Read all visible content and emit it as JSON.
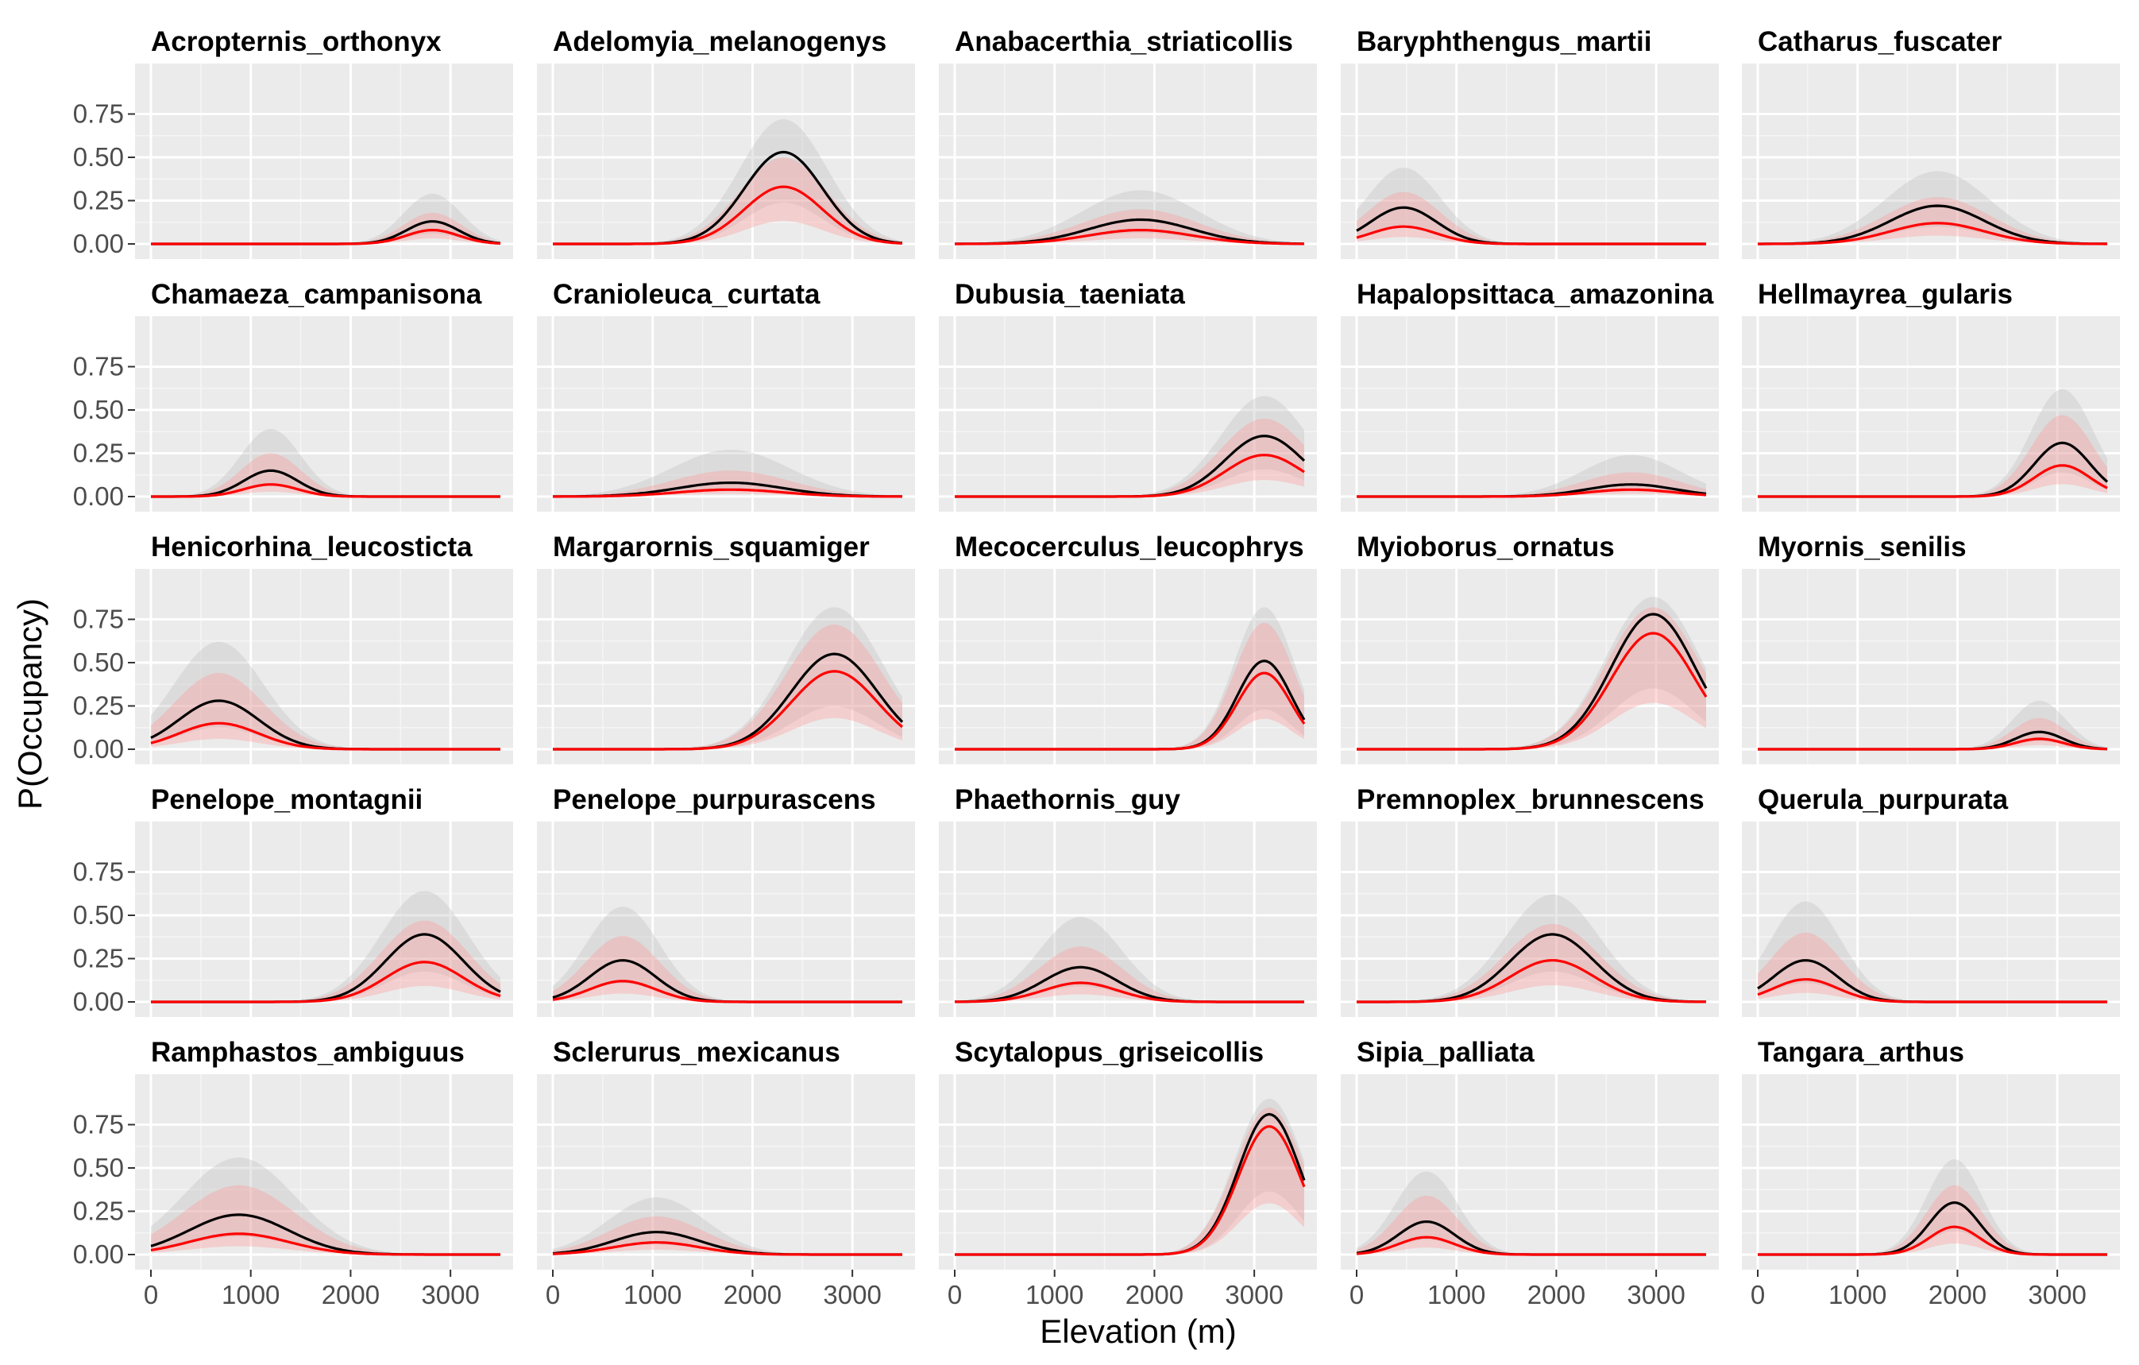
{
  "colors": {
    "panel_bg": "#ebebeb",
    "grid_major": "#ffffff",
    "grid_minor": "#f5f5f5",
    "black_line": "#000000",
    "red_line": "#ff0000",
    "grey_band": "#bdbdbd",
    "red_band": "#ff9999",
    "tick_text": "#4d4d4d"
  },
  "chart_data": {
    "type": "line",
    "xlabel": "Elevation (m)",
    "ylabel": "P(Occupancy)",
    "xlim": [
      0,
      3500
    ],
    "ylim": [
      0,
      0.8
    ],
    "x_ticks": [
      0,
      1000,
      2000,
      3000
    ],
    "x_tick_labels": [
      "0",
      "1000",
      "2000",
      "3000"
    ],
    "y_ticks": [
      0,
      0.25,
      0.5,
      0.75
    ],
    "y_tick_labels": [
      "0.00",
      "0.25",
      "0.50",
      "0.75"
    ],
    "grid": true,
    "layout": "facet grid 5 x 5",
    "series_styles": [
      {
        "color": "#000000",
        "band": "grey"
      },
      {
        "color": "#ff0000",
        "band": "red"
      }
    ],
    "panels": [
      {
        "species": "Acropternis_orthonyx",
        "mu": 2820,
        "sigma": 260,
        "black_peak": 0.13,
        "red_peak": 0.08,
        "black_upper": 0.29,
        "red_upper": 0.18
      },
      {
        "species": "Adelomyia_melanogenys",
        "mu": 2310,
        "sigma": 390,
        "black_peak": 0.53,
        "red_peak": 0.33,
        "black_upper": 0.72,
        "red_upper": 0.5
      },
      {
        "species": "Anabacerthia_striaticollis",
        "mu": 1860,
        "sigma": 520,
        "black_peak": 0.14,
        "red_peak": 0.08,
        "black_upper": 0.31,
        "red_upper": 0.2
      },
      {
        "species": "Baryphthengus_martii",
        "mu": 470,
        "sigma": 330,
        "black_peak": 0.21,
        "red_peak": 0.1,
        "black_upper": 0.44,
        "red_upper": 0.3
      },
      {
        "species": "Catharus_fuscater",
        "mu": 1800,
        "sigma": 470,
        "black_peak": 0.22,
        "red_peak": 0.12,
        "black_upper": 0.42,
        "red_upper": 0.27
      },
      {
        "species": "Chamaeza_campanisona",
        "mu": 1200,
        "sigma": 270,
        "black_peak": 0.15,
        "red_peak": 0.07,
        "black_upper": 0.39,
        "red_upper": 0.25
      },
      {
        "species": "Cranioleuca_curtata",
        "mu": 1780,
        "sigma": 530,
        "black_peak": 0.08,
        "red_peak": 0.04,
        "black_upper": 0.27,
        "red_upper": 0.15
      },
      {
        "species": "Dubusia_taeniata",
        "mu": 3100,
        "sigma": 390,
        "black_peak": 0.35,
        "red_peak": 0.24,
        "black_upper": 0.58,
        "red_upper": 0.45
      },
      {
        "species": "Hapalopsittaca_amazonina",
        "mu": 2750,
        "sigma": 440,
        "black_peak": 0.07,
        "red_peak": 0.04,
        "black_upper": 0.24,
        "red_upper": 0.14
      },
      {
        "species": "Hellmayrea_gularis",
        "mu": 3050,
        "sigma": 280,
        "black_peak": 0.31,
        "red_peak": 0.18,
        "black_upper": 0.62,
        "red_upper": 0.47
      },
      {
        "species": "Henicorhina_leucosticta",
        "mu": 680,
        "sigma": 400,
        "black_peak": 0.28,
        "red_peak": 0.15,
        "black_upper": 0.62,
        "red_upper": 0.44
      },
      {
        "species": "Margarornis_squamiger",
        "mu": 2820,
        "sigma": 430,
        "black_peak": 0.55,
        "red_peak": 0.45,
        "black_upper": 0.82,
        "red_upper": 0.72
      },
      {
        "species": "Mecocerculus_leucophrys",
        "mu": 3100,
        "sigma": 270,
        "black_peak": 0.51,
        "red_peak": 0.44,
        "black_upper": 0.82,
        "red_upper": 0.73
      },
      {
        "species": "Myioborus_ornatus",
        "mu": 2970,
        "sigma": 420,
        "black_peak": 0.78,
        "red_peak": 0.67,
        "black_upper": 0.88,
        "red_upper": 0.82
      },
      {
        "species": "Myornis_senilis",
        "mu": 2820,
        "sigma": 240,
        "black_peak": 0.1,
        "red_peak": 0.06,
        "black_upper": 0.28,
        "red_upper": 0.18
      },
      {
        "species": "Penelope_montagnii",
        "mu": 2740,
        "sigma": 390,
        "black_peak": 0.39,
        "red_peak": 0.23,
        "black_upper": 0.64,
        "red_upper": 0.47
      },
      {
        "species": "Penelope_purpurascens",
        "mu": 700,
        "sigma": 330,
        "black_peak": 0.24,
        "red_peak": 0.12,
        "black_upper": 0.55,
        "red_upper": 0.38
      },
      {
        "species": "Phaethornis_guy",
        "mu": 1260,
        "sigma": 370,
        "black_peak": 0.2,
        "red_peak": 0.11,
        "black_upper": 0.49,
        "red_upper": 0.32
      },
      {
        "species": "Premnoplex_brunnescens",
        "mu": 1960,
        "sigma": 420,
        "black_peak": 0.39,
        "red_peak": 0.24,
        "black_upper": 0.62,
        "red_upper": 0.45
      },
      {
        "species": "Querula_purpurata",
        "mu": 480,
        "sigma": 320,
        "black_peak": 0.24,
        "red_peak": 0.13,
        "black_upper": 0.58,
        "red_upper": 0.4
      },
      {
        "species": "Ramphastos_ambiguus",
        "mu": 880,
        "sigma": 500,
        "black_peak": 0.23,
        "red_peak": 0.12,
        "black_upper": 0.56,
        "red_upper": 0.4
      },
      {
        "species": "Sclerurus_mexicanus",
        "mu": 1040,
        "sigma": 430,
        "black_peak": 0.13,
        "red_peak": 0.07,
        "black_upper": 0.33,
        "red_upper": 0.22
      },
      {
        "species": "Scytalopus_griseicollis",
        "mu": 3150,
        "sigma": 310,
        "black_peak": 0.81,
        "red_peak": 0.74,
        "black_upper": 0.9,
        "red_upper": 0.85
      },
      {
        "species": "Sipia_palliata",
        "mu": 700,
        "sigma": 280,
        "black_peak": 0.19,
        "red_peak": 0.1,
        "black_upper": 0.48,
        "red_upper": 0.34
      },
      {
        "species": "Tangara_arthus",
        "mu": 1970,
        "sigma": 250,
        "black_peak": 0.3,
        "red_peak": 0.16,
        "black_upper": 0.55,
        "red_upper": 0.4
      }
    ]
  }
}
